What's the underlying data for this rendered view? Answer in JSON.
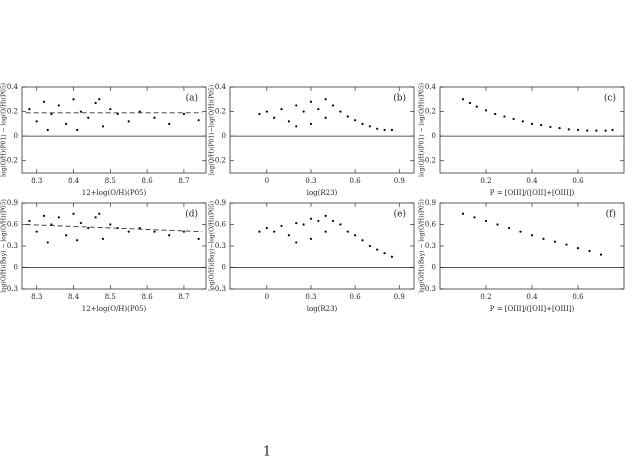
{
  "chart_data": [
    {
      "type": "scatter",
      "panel_label": "(a)",
      "x_label": "12+log(O/H)(P05)",
      "y_label": "log(O/H)(P01) − log(O/H)(P05)",
      "xlim": [
        8.26,
        8.76
      ],
      "ylim": [
        -0.3,
        0.4
      ],
      "xticks": [
        8.3,
        8.4,
        8.5,
        8.6,
        8.7
      ],
      "yticks": [
        -0.2,
        0,
        0.2,
        0.4
      ],
      "reference_line": 0,
      "color": "#000000",
      "points": {
        "x": [
          8.28,
          8.3,
          8.32,
          8.34,
          8.36,
          8.38,
          8.4,
          8.42,
          8.44,
          8.46,
          8.48,
          8.5,
          8.52,
          8.55,
          8.58,
          8.62,
          8.66,
          8.7,
          8.74,
          8.33,
          8.41,
          8.47
        ],
        "y": [
          0.22,
          0.12,
          0.28,
          0.18,
          0.25,
          0.1,
          0.3,
          0.2,
          0.15,
          0.27,
          0.08,
          0.22,
          0.18,
          0.12,
          0.2,
          0.15,
          0.1,
          0.18,
          0.13,
          0.05,
          0.05,
          0.3
        ]
      },
      "dashed_line": {
        "x": [
          8.27,
          8.75
        ],
        "y": [
          0.19,
          0.19
        ]
      }
    },
    {
      "type": "scatter",
      "panel_label": "(b)",
      "x_label": "log(R23)",
      "y_label": "log(O/H)(P01)−log(O/H)(P05)",
      "xlim": [
        -0.25,
        1.0
      ],
      "ylim": [
        -0.3,
        0.4
      ],
      "xticks": [
        0,
        0.3,
        0.6,
        0.9
      ],
      "yticks": [
        -0.2,
        0,
        0.2,
        0.4
      ],
      "reference_line": 0,
      "color": "#000000",
      "points": {
        "x": [
          -0.05,
          0.0,
          0.05,
          0.1,
          0.15,
          0.2,
          0.25,
          0.3,
          0.35,
          0.4,
          0.45,
          0.5,
          0.55,
          0.6,
          0.65,
          0.7,
          0.75,
          0.8,
          0.85,
          0.2,
          0.3,
          0.4
        ],
        "y": [
          0.18,
          0.2,
          0.15,
          0.22,
          0.12,
          0.25,
          0.2,
          0.28,
          0.22,
          0.3,
          0.25,
          0.2,
          0.16,
          0.13,
          0.1,
          0.08,
          0.06,
          0.05,
          0.05,
          0.08,
          0.1,
          0.15
        ]
      }
    },
    {
      "type": "scatter",
      "panel_label": "(c)",
      "x_label": "P = [OIII]/([OII]+[OIII])",
      "y_label": "log(O/H)(P01) − log(O/H)(P05)",
      "xlim": [
        0,
        0.8
      ],
      "ylim": [
        -0.3,
        0.4
      ],
      "xticks": [
        0.2,
        0.4,
        0.6
      ],
      "yticks": [
        -0.2,
        0,
        0.2,
        0.4
      ],
      "reference_line": 0,
      "color": "#000000",
      "points": {
        "x": [
          0.1,
          0.13,
          0.16,
          0.2,
          0.24,
          0.28,
          0.32,
          0.36,
          0.4,
          0.44,
          0.48,
          0.52,
          0.56,
          0.6,
          0.64,
          0.68,
          0.72,
          0.75
        ],
        "y": [
          0.3,
          0.27,
          0.24,
          0.21,
          0.18,
          0.16,
          0.14,
          0.12,
          0.1,
          0.09,
          0.075,
          0.065,
          0.055,
          0.05,
          0.045,
          0.045,
          0.045,
          0.05
        ]
      }
    },
    {
      "type": "scatter",
      "panel_label": "(d)",
      "x_label": "12+log(O/H)(P05)",
      "y_label": "log(O/H)(Bay) − log(O/H)(P05)",
      "xlim": [
        8.26,
        8.76
      ],
      "ylim": [
        -0.3,
        0.9
      ],
      "xticks": [
        8.3,
        8.4,
        8.5,
        8.6,
        8.7
      ],
      "yticks": [
        -0.3,
        0,
        0.3,
        0.6,
        0.9
      ],
      "reference_line": 0,
      "color": "#000000",
      "points": {
        "x": [
          8.28,
          8.3,
          8.32,
          8.34,
          8.36,
          8.38,
          8.4,
          8.42,
          8.44,
          8.46,
          8.48,
          8.5,
          8.52,
          8.55,
          8.58,
          8.62,
          8.66,
          8.7,
          8.74,
          8.33,
          8.41,
          8.47
        ],
        "y": [
          0.65,
          0.5,
          0.72,
          0.6,
          0.7,
          0.45,
          0.75,
          0.62,
          0.55,
          0.7,
          0.4,
          0.6,
          0.55,
          0.5,
          0.55,
          0.5,
          0.45,
          0.5,
          0.4,
          0.35,
          0.38,
          0.75
        ]
      },
      "dashed_line": {
        "x": [
          8.27,
          8.75
        ],
        "y": [
          0.6,
          0.5
        ]
      }
    },
    {
      "type": "scatter",
      "panel_label": "(e)",
      "x_label": "log(R23)",
      "y_label": "log(O/H)(Bay)−log(O/H)(P05)",
      "xlim": [
        -0.25,
        1.0
      ],
      "ylim": [
        -0.3,
        0.9
      ],
      "xticks": [
        0,
        0.3,
        0.6,
        0.9
      ],
      "yticks": [
        -0.3,
        0,
        0.3,
        0.6,
        0.9
      ],
      "reference_line": 0,
      "color": "#000000",
      "points": {
        "x": [
          -0.05,
          0.0,
          0.05,
          0.1,
          0.15,
          0.2,
          0.25,
          0.3,
          0.35,
          0.4,
          0.45,
          0.5,
          0.55,
          0.6,
          0.65,
          0.7,
          0.75,
          0.8,
          0.85,
          0.2,
          0.3,
          0.4
        ],
        "y": [
          0.5,
          0.55,
          0.5,
          0.58,
          0.45,
          0.62,
          0.6,
          0.68,
          0.65,
          0.72,
          0.65,
          0.6,
          0.5,
          0.45,
          0.38,
          0.3,
          0.25,
          0.2,
          0.15,
          0.35,
          0.4,
          0.5
        ]
      }
    },
    {
      "type": "scatter",
      "panel_label": "(f)",
      "x_label": "P = [OIII]/([OII]+[OIII])",
      "y_label": "log(O/H)(Bay) − log(O/H)(P05)",
      "xlim": [
        0,
        0.8
      ],
      "ylim": [
        -0.3,
        0.9
      ],
      "xticks": [
        0.2,
        0.4,
        0.6
      ],
      "yticks": [
        -0.3,
        0,
        0.3,
        0.6,
        0.9
      ],
      "reference_line": 0,
      "color": "#000000",
      "points": {
        "x": [
          0.1,
          0.15,
          0.2,
          0.25,
          0.3,
          0.35,
          0.4,
          0.45,
          0.5,
          0.55,
          0.6,
          0.65,
          0.7
        ],
        "y": [
          0.75,
          0.7,
          0.65,
          0.6,
          0.55,
          0.5,
          0.45,
          0.4,
          0.36,
          0.32,
          0.27,
          0.23,
          0.18
        ]
      }
    }
  ],
  "page_number": "1"
}
